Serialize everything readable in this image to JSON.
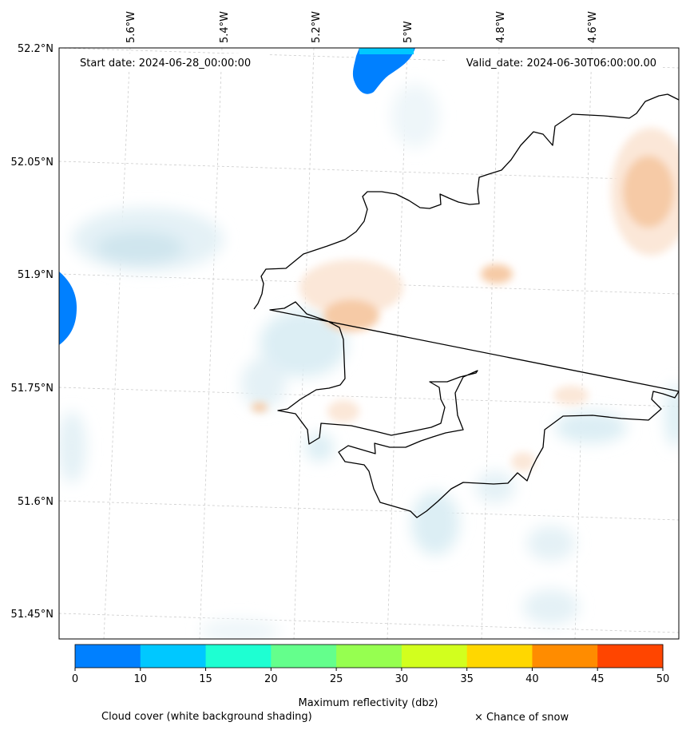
{
  "header": {
    "start_label": "Start date: 2024-06-28_00:00:00",
    "valid_label": "Valid_date: 2024-06-30T06:00:00.00"
  },
  "axes": {
    "lon_labels": [
      "5.6°W",
      "5.4°W",
      "5.2°W",
      "5°W",
      "4.8°W",
      "4.6°W"
    ],
    "lat_labels": [
      "52.2°N",
      "52.05°N",
      "51.9°N",
      "51.75°N",
      "51.6°N",
      "51.45°N"
    ]
  },
  "colorbar": {
    "ticks": [
      "0",
      "10",
      "15",
      "20",
      "25",
      "30",
      "35",
      "40",
      "45",
      "50"
    ],
    "colors": [
      "#0080ff",
      "#00c8ff",
      "#1effd2",
      "#64ff8c",
      "#96ff50",
      "#d2ff1e",
      "#ffd700",
      "#ff8c00",
      "#ff4500"
    ],
    "label": "Maximum reflectivity (dbz)"
  },
  "legend": {
    "cloud_cover": "Cloud cover (white background shading)",
    "snow": "× Chance of snow"
  },
  "colors": {
    "cloud_low": "#e4f1f6",
    "cloud_mid": "#cfe5ee",
    "warm_low": "#fbe7d8",
    "warm_mid": "#f6caa6",
    "reflectivity_blue": "#0080ff",
    "reflectivity_cyan": "#00c8ff",
    "coastline": "#000000",
    "gridline": "#cccccc"
  }
}
